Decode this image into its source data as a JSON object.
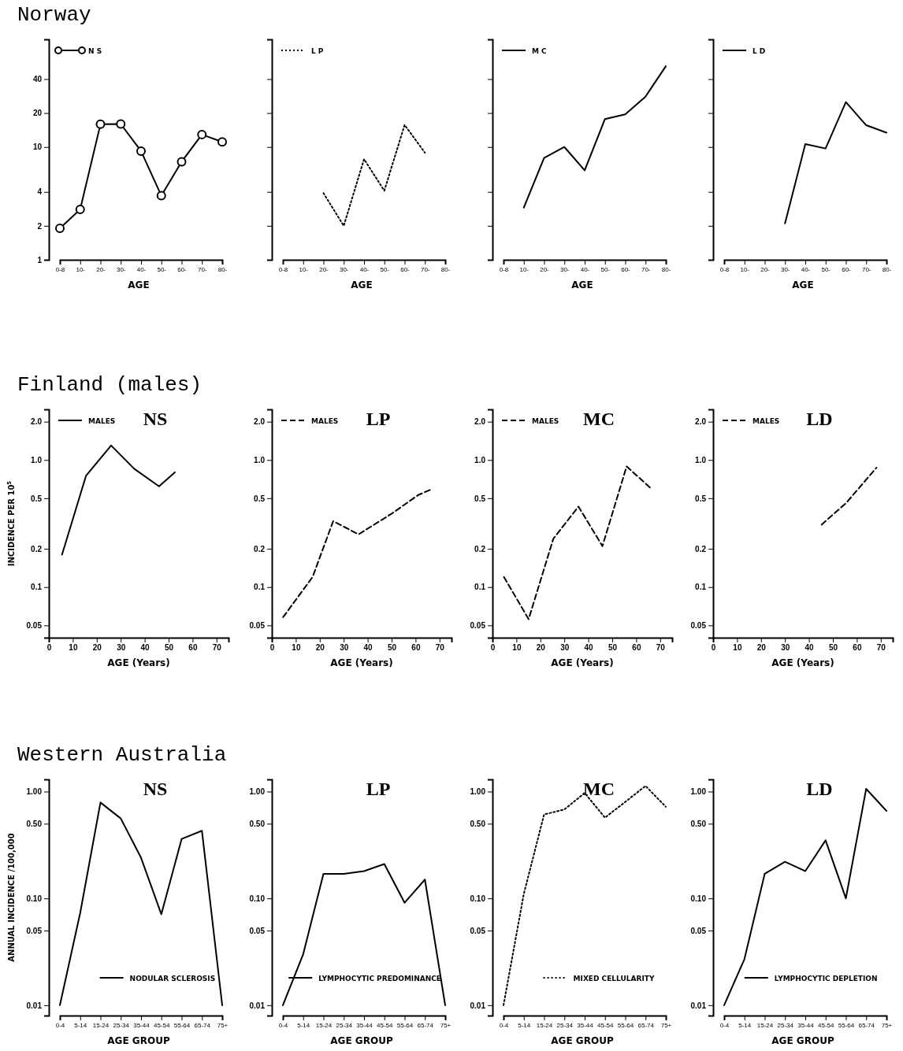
{
  "chart_data": [
    {
      "type": "line",
      "title": "Norway",
      "xlabel": "AGE",
      "categories": [
        "0-8",
        "10-",
        "20-",
        "30-",
        "40-",
        "50-",
        "60-",
        "70-",
        "80-"
      ],
      "log": true,
      "ylim": [
        1,
        90
      ],
      "yticks": [
        1,
        2,
        4,
        10,
        20,
        40
      ],
      "legend": "top left",
      "marker": "circle",
      "series": [
        {
          "name": "N S",
          "color": "#000000",
          "line_style": "solid",
          "values": [
            1.9,
            2.8,
            15.9,
            16,
            9.2,
            3.7,
            7.4,
            12.9,
            11.1
          ]
        }
      ]
    },
    {
      "type": "line",
      "xlabel": "AGE",
      "categories": [
        "0-8",
        "10-",
        "20-",
        "30-",
        "40-",
        "50-",
        "60-",
        "70-",
        "80-"
      ],
      "log": true,
      "ylim": [
        1,
        90
      ],
      "yticks": [
        1,
        2,
        4,
        10,
        20,
        40
      ],
      "tick_labels": "x",
      "legend": "top left",
      "series": [
        {
          "name": "L P",
          "color": "#000000",
          "line_style": "dotted",
          "values": [
            null,
            null,
            3.9,
            2.0,
            7.8,
            4.1,
            15.7,
            8.9,
            null
          ]
        }
      ]
    },
    {
      "type": "line",
      "xlabel": "AGE",
      "categories": [
        "0-8",
        "10-",
        "20-",
        "30-",
        "40-",
        "50-",
        "60-",
        "70-",
        "80-"
      ],
      "log": true,
      "ylim": [
        1,
        90
      ],
      "yticks": [
        1,
        2,
        4,
        10,
        20,
        40
      ],
      "tick_labels": "x",
      "legend": "top left",
      "series": [
        {
          "name": "M C",
          "color": "#000000",
          "line_style": "solid",
          "values": [
            null,
            2.9,
            8.0,
            10,
            6.2,
            17.7,
            19.5,
            28,
            52
          ]
        }
      ]
    },
    {
      "type": "line",
      "xlabel": "AGE",
      "categories": [
        "0-8",
        "10-",
        "20-",
        "30-",
        "40-",
        "50-",
        "60-",
        "70-",
        "80-"
      ],
      "log": true,
      "ylim": [
        1,
        90
      ],
      "yticks": [
        1,
        2,
        4,
        10,
        20,
        40
      ],
      "tick_labels": "x",
      "legend": "top left",
      "series": [
        {
          "name": "L D",
          "color": "#000000",
          "line_style": "solid",
          "values": [
            null,
            null,
            null,
            2.1,
            10.6,
            9.7,
            25,
            15.6,
            13.4
          ]
        }
      ]
    },
    {
      "type": "line",
      "title": "Finland (males)",
      "subtitle": "NS",
      "xlabel": "AGE (Years)",
      "ylabel": "INCIDENCE PER 10$^{5}$",
      "log": true,
      "xlim": [
        0,
        75
      ],
      "xticks": [
        0,
        10,
        20,
        30,
        40,
        50,
        60,
        70
      ],
      "ylim": [
        0.04,
        2.5
      ],
      "yticks": [
        0.05,
        0.1,
        0.2,
        0.5,
        {
          "value": 1,
          "label": "1.0"
        },
        {
          "value": 2,
          "label": "2.0"
        }
      ],
      "legend": "top left",
      "series": [
        {
          "name": "MALES",
          "color": "#000000",
          "line_style": "solid",
          "x": [
            5.5,
            15.5,
            26,
            35.7,
            46,
            52.6
          ],
          "values": [
            0.18,
            0.75,
            1.3,
            0.85,
            0.62,
            0.8
          ]
        }
      ]
    },
    {
      "type": "line",
      "subtitle": "LP",
      "xlabel": "AGE (Years)",
      "log": true,
      "xlim": [
        0,
        75
      ],
      "xticks": [
        0,
        10,
        20,
        30,
        40,
        50,
        60,
        70
      ],
      "ylim": [
        0.04,
        2.5
      ],
      "yticks": [
        0.05,
        0.1,
        0.2,
        0.5,
        {
          "value": 1,
          "label": "1.0"
        },
        {
          "value": 2,
          "label": "2.0"
        }
      ],
      "legend": "top left",
      "series": [
        {
          "name": "MALES",
          "color": "#000000",
          "line_style": "dashed",
          "x": [
            4.7,
            17,
            25.6,
            36.2,
            50.2,
            61.1,
            66.8
          ],
          "values": [
            0.058,
            0.12,
            0.33,
            0.26,
            0.38,
            0.53,
            0.59
          ]
        }
      ]
    },
    {
      "type": "line",
      "subtitle": "MC",
      "xlabel": "AGE (Years)",
      "log": true,
      "xlim": [
        0,
        75
      ],
      "xticks": [
        0,
        10,
        20,
        30,
        40,
        50,
        60,
        70
      ],
      "ylim": [
        0.04,
        2.5
      ],
      "yticks": [
        0.05,
        0.1,
        0.2,
        0.5,
        {
          "value": 1,
          "label": "1.0"
        },
        {
          "value": 2,
          "label": "2.0"
        }
      ],
      "legend": "top left",
      "series": [
        {
          "name": "MALES",
          "color": "#000000",
          "line_style": "dashed",
          "x": [
            4.8,
            15.1,
            25.4,
            35.9,
            45.9,
            56,
            66.5
          ],
          "values": [
            0.12,
            0.056,
            0.24,
            0.43,
            0.21,
            0.89,
            0.59
          ]
        }
      ]
    },
    {
      "type": "line",
      "subtitle": "LD",
      "xlabel": "AGE (Years)",
      "log": true,
      "xlim": [
        0,
        75
      ],
      "xticks": [
        0,
        10,
        20,
        30,
        40,
        50,
        60,
        70
      ],
      "ylim": [
        0.04,
        2.5
      ],
      "yticks": [
        0.05,
        0.1,
        0.2,
        0.5,
        {
          "value": 1,
          "label": "1.0"
        },
        {
          "value": 2,
          "label": "2.0"
        }
      ],
      "legend": "top left",
      "series": [
        {
          "name": "MALES",
          "color": "#000000",
          "line_style": "dashed",
          "x": [
            45.3,
            55.6,
            68.2
          ],
          "values": [
            0.31,
            0.46,
            0.87
          ]
        }
      ]
    },
    {
      "type": "line",
      "title": "Western Australia",
      "subtitle": "NS",
      "xlabel": "AGE GROUP",
      "ylabel": "ANNUAL INCIDENCE /100,000",
      "categories": [
        "0-4",
        "5-14",
        "15-24",
        "25-34",
        "35-44",
        "45-54",
        "55-64",
        "65-74",
        "75+"
      ],
      "log": true,
      "ylim": [
        0.008,
        1.3
      ],
      "yticks": [
        0.01,
        0.05,
        {
          "value": 0.1,
          "label": "0.10"
        },
        {
          "value": 0.5,
          "label": "0.50"
        },
        {
          "value": 1,
          "label": "1.00"
        }
      ],
      "legend": "bottom right",
      "series": [
        {
          "name": "NODULAR SCLEROSIS",
          "color": "#000000",
          "line_style": "solid",
          "values": [
            0.01,
            0.073,
            0.79,
            0.56,
            0.24,
            0.071,
            0.36,
            0.43,
            0.01
          ]
        }
      ]
    },
    {
      "type": "line",
      "subtitle": "LP",
      "xlabel": "AGE GROUP",
      "categories": [
        "0-4",
        "5-14",
        "15-24",
        "25-34",
        "35-44",
        "45-54",
        "55-64",
        "65-74",
        "75+"
      ],
      "log": true,
      "ylim": [
        0.008,
        1.3
      ],
      "yticks": [
        0.01,
        0.05,
        {
          "value": 0.1,
          "label": "0.10"
        },
        {
          "value": 0.5,
          "label": "0.50"
        },
        {
          "value": 1,
          "label": "1.00"
        }
      ],
      "legend": "bottom right",
      "series": [
        {
          "name": "LYMPHOCYTIC PREDOMINANCE",
          "color": "#000000",
          "line_style": "solid",
          "values": [
            0.01,
            0.03,
            0.17,
            0.17,
            0.18,
            0.21,
            0.091,
            0.15,
            0.01
          ]
        }
      ]
    },
    {
      "type": "line",
      "subtitle": "MC",
      "xlabel": "AGE GROUP",
      "categories": [
        "0-4",
        "5-14",
        "15-24",
        "25-34",
        "35-44",
        "45-54",
        "55-64",
        "65-74",
        "75+"
      ],
      "log": true,
      "ylim": [
        0.008,
        1.3
      ],
      "yticks": [
        0.01,
        0.05,
        {
          "value": 0.1,
          "label": "0.10"
        },
        {
          "value": 0.5,
          "label": "0.50"
        },
        {
          "value": 1,
          "label": "1.00"
        }
      ],
      "legend": "bottom right",
      "series": [
        {
          "name": "MIXED CELLULARITY",
          "color": "#000000",
          "line_style": "dotted",
          "values": [
            0.01,
            0.11,
            0.61,
            0.68,
            0.97,
            0.57,
            0.8,
            1.13,
            0.72
          ]
        }
      ]
    },
    {
      "type": "line",
      "subtitle": "LD",
      "xlabel": "AGE GROUP",
      "categories": [
        "0-4",
        "5-14",
        "15-24",
        "25-34",
        "35-44",
        "45-54",
        "55-64",
        "65-74",
        "75+"
      ],
      "log": true,
      "ylim": [
        0.008,
        1.3
      ],
      "yticks": [
        0.01,
        0.05,
        {
          "value": 0.1,
          "label": "0.10"
        },
        {
          "value": 0.5,
          "label": "0.50"
        },
        {
          "value": 1,
          "label": "1.00"
        }
      ],
      "legend": "bottom right",
      "series": [
        {
          "name": "LYMPHOCYTIC DEPLETION",
          "color": "#000000",
          "line_style": "solid",
          "values": [
            0.01,
            0.027,
            0.17,
            0.22,
            0.18,
            0.35,
            0.1,
            1.06,
            0.66
          ]
        }
      ]
    }
  ]
}
